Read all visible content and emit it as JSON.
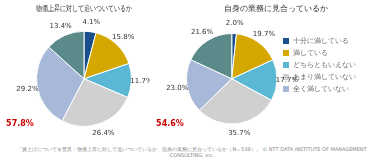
{
  "chart_data": [
    {
      "type": "pie",
      "title": "物価上昇に対して追いついているか",
      "categories": [
        "十分に満している",
        "満している",
        "どちらともいえない",
        "あまり満していない",
        "全く満していない",
        null
      ],
      "values": [
        4.1,
        15.8,
        11.7,
        26.4,
        29.2,
        13.4
      ],
      "value_labels": [
        "4.1%",
        "15.8%",
        "11.7%",
        "26.4%",
        "29.2%",
        "13.4%"
      ],
      "colors": [
        "#1a4f8a",
        "#d4a800",
        "#5bb8d4",
        "#d0d0d0",
        "#a8b8d8",
        "#5a8a8a"
      ],
      "data_labels": true,
      "annotations": [
        {
          "text": "57.8%",
          "color": "#cc0000"
        }
      ]
    },
    {
      "type": "pie",
      "title": "自身の業務に見合っているか",
      "categories": [
        "十分に満している",
        "満している",
        "どちらともいえない",
        "あまり満していない",
        "全く満していない",
        null
      ],
      "values": [
        2.0,
        19.7,
        17.7,
        35.7,
        23.0,
        21.6
      ],
      "value_labels": [
        "2.0%",
        "19.7%",
        "17.7%",
        "35.7%",
        "23.0%",
        "21.6%"
      ],
      "colors": [
        "#1a4f8a",
        "#d4a800",
        "#5bb8d4",
        "#d0d0d0",
        "#a8b8d8",
        "#5a8a8a"
      ],
      "data_labels": true,
      "annotations": [
        {
          "text": "54.6%",
          "color": "#cc0000"
        }
      ],
      "legend": "right"
    }
  ],
  "footer": "「賃上げについてを普及：物価上昇に対して追いついているか、自身の業務に見合っているか（N＝538）」 ©  NTT DATA INSTITUTE OF MANAGEMENT CONSULTING, Inc."
}
